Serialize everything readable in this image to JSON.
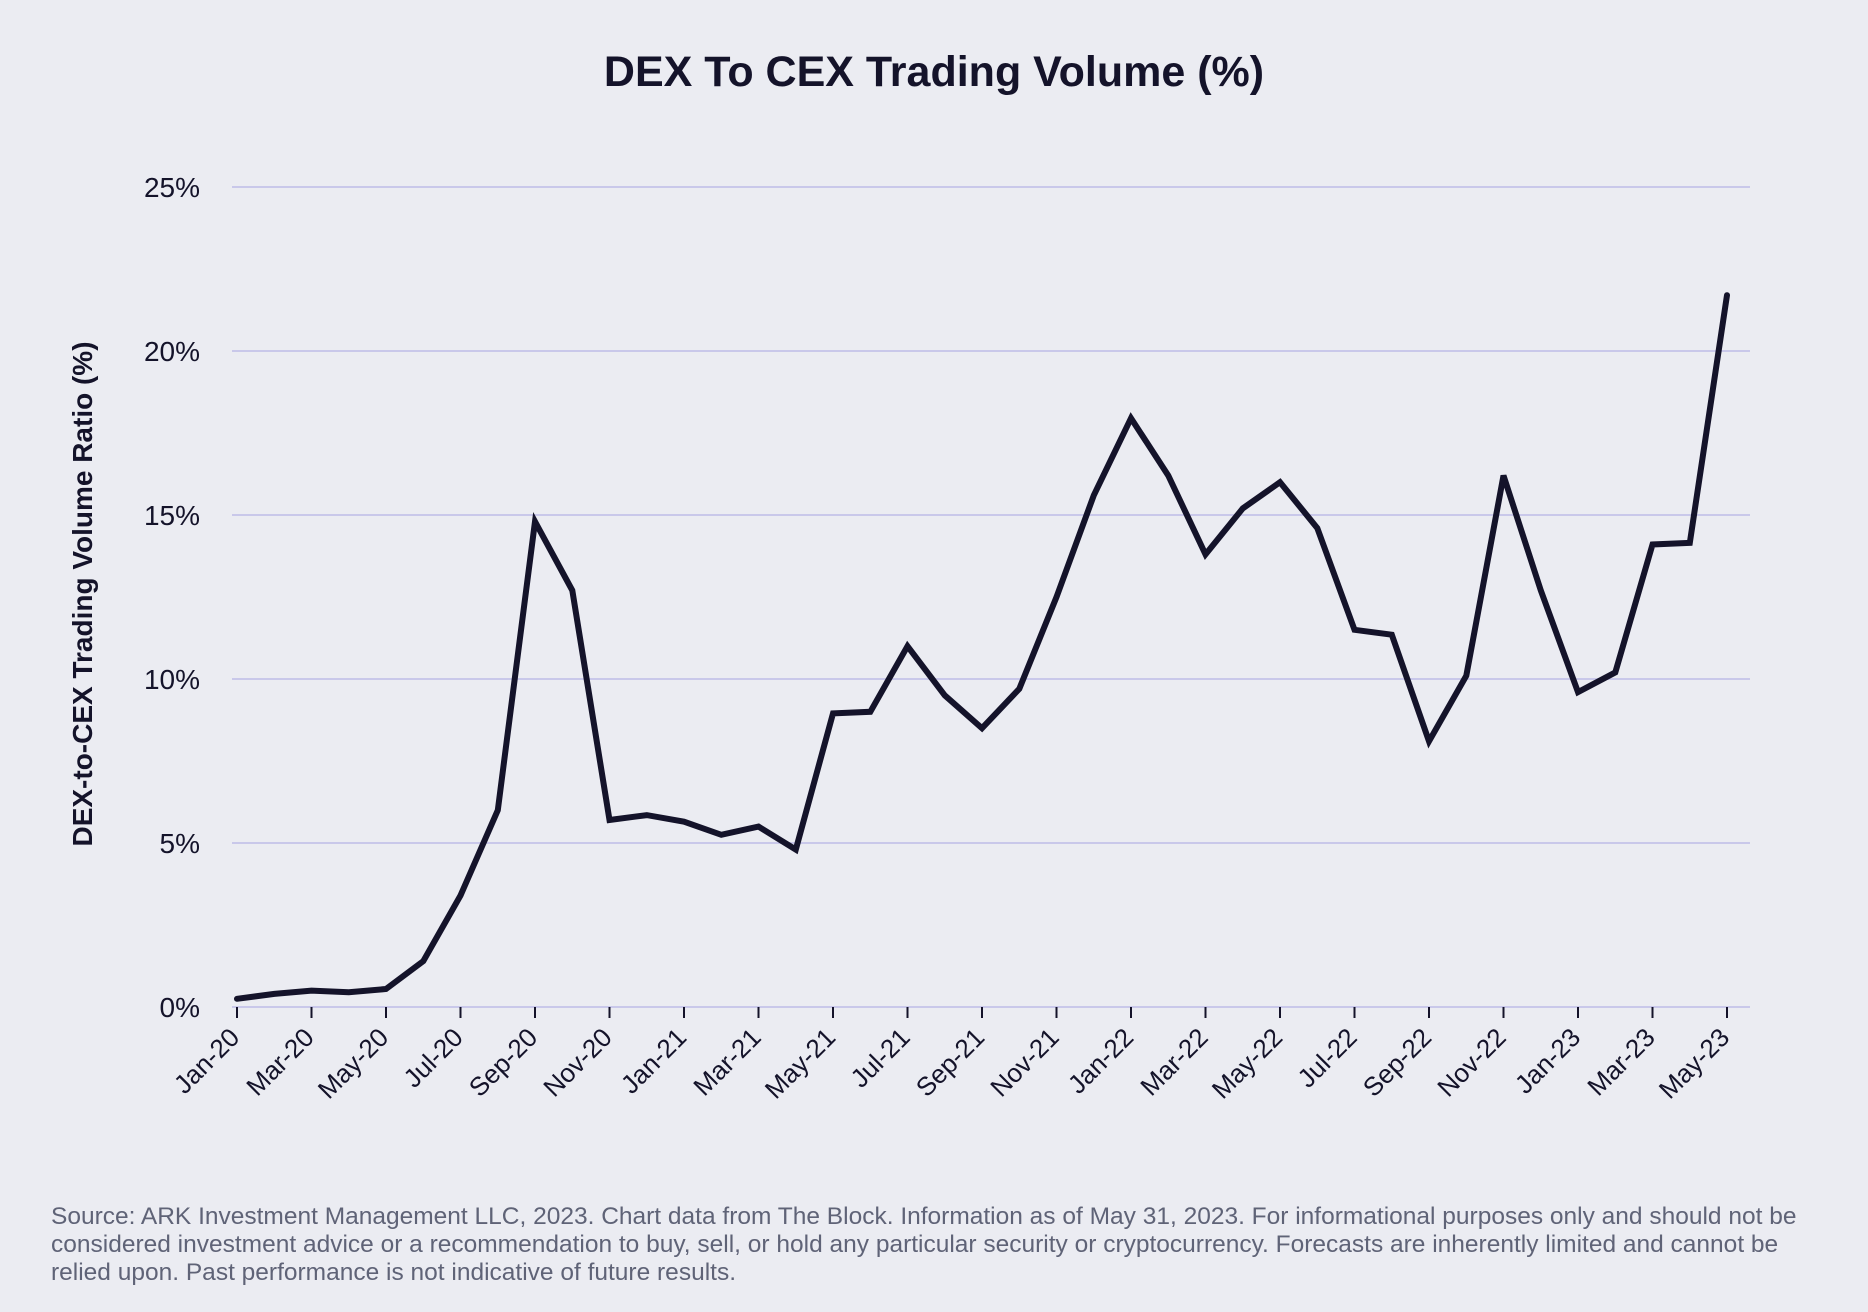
{
  "chart_data": {
    "type": "line",
    "title": "DEX To CEX Trading Volume (%)",
    "xlabel": "",
    "ylabel": "DEX-to-CEX Trading Volume Ratio (%)",
    "ylim": [
      0,
      25
    ],
    "yticks": [
      0,
      5,
      10,
      15,
      20,
      25
    ],
    "ytick_labels": [
      "0%",
      "5%",
      "10%",
      "15%",
      "20%",
      "25%"
    ],
    "grid": true,
    "x_tick_labels": [
      "Jan-20",
      "Mar-20",
      "May-20",
      "Jul-20",
      "Sep-20",
      "Nov-20",
      "Jan-21",
      "Mar-21",
      "May-21",
      "Jul-21",
      "Sep-21",
      "Nov-21",
      "Jan-22",
      "Mar-22",
      "May-22",
      "Jul-22",
      "Sep-22",
      "Nov-22",
      "Jan-23",
      "Mar-23",
      "May-23"
    ],
    "series": [
      {
        "name": "DEX-to-CEX Trading Volume Ratio",
        "color": "#14132a",
        "x": [
          "Jan-20",
          "Feb-20",
          "Mar-20",
          "Apr-20",
          "May-20",
          "Jun-20",
          "Jul-20",
          "Aug-20",
          "Sep-20",
          "Oct-20",
          "Nov-20",
          "Dec-20",
          "Jan-21",
          "Feb-21",
          "Mar-21",
          "Apr-21",
          "May-21",
          "Jun-21",
          "Jul-21",
          "Aug-21",
          "Sep-21",
          "Oct-21",
          "Nov-21",
          "Dec-21",
          "Jan-22",
          "Feb-22",
          "Mar-22",
          "Apr-22",
          "May-22",
          "Jun-22",
          "Jul-22",
          "Aug-22",
          "Sep-22",
          "Oct-22",
          "Nov-22",
          "Dec-22",
          "Jan-23",
          "Feb-23",
          "Mar-23",
          "Apr-23",
          "May-23"
        ],
        "values": [
          0.25,
          0.4,
          0.5,
          0.45,
          0.55,
          1.4,
          3.4,
          6.0,
          14.8,
          12.7,
          5.7,
          5.85,
          5.65,
          5.25,
          5.5,
          4.8,
          8.95,
          9.0,
          11.0,
          9.5,
          8.5,
          9.7,
          12.5,
          15.6,
          17.95,
          16.2,
          13.8,
          15.2,
          16.0,
          14.6,
          11.5,
          11.35,
          8.1,
          10.1,
          16.2,
          12.7,
          9.6,
          10.2,
          14.1,
          14.15,
          21.7
        ]
      }
    ]
  },
  "footer": {
    "source_text": "Source: ARK Investment Management LLC, 2023. Chart data from The Block. Information as of May 31, 2023. For informational purposes only and should not be considered investment advice or a recommendation to buy, sell, or hold any particular security or cryptocurrency. Forecasts are inherently limited and cannot be relied upon. Past performance is not indicative of future results."
  }
}
